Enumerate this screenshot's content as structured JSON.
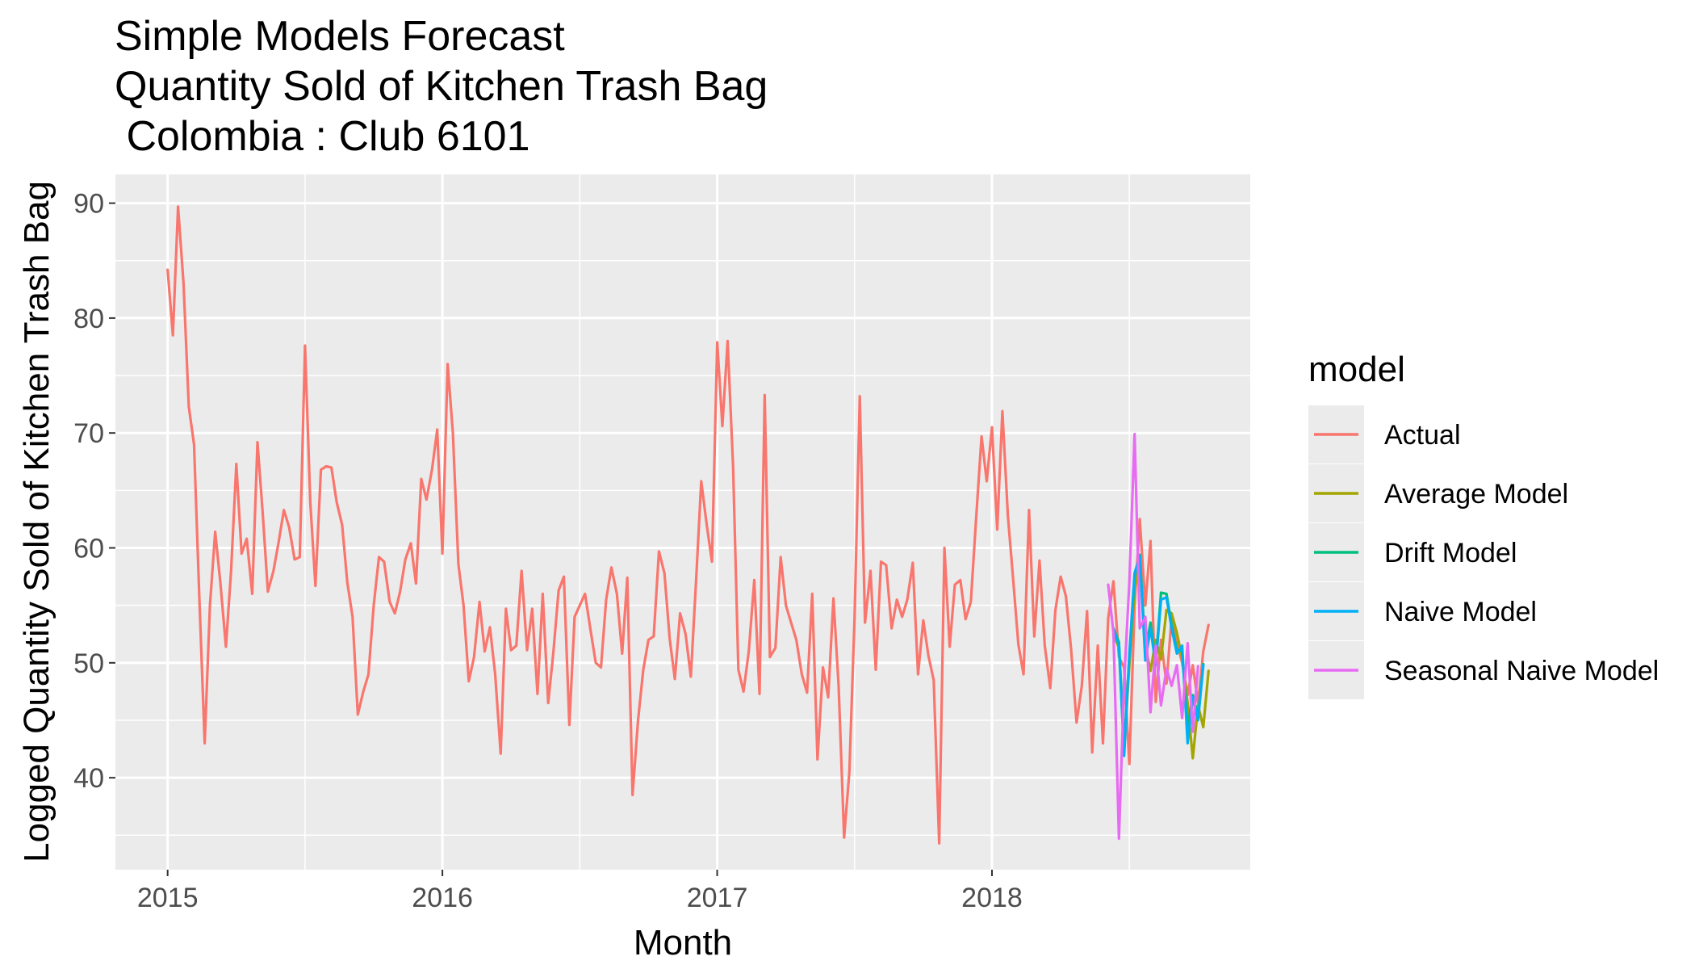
{
  "chart_data": {
    "type": "line",
    "title_lines": [
      "Simple Models Forecast",
      "Quantity Sold of Kitchen Trash Bag",
      " Colombia : Club 6101"
    ],
    "xlabel": "Month",
    "ylabel": "Logged Quantity Sold of Kitchen Trash Bag",
    "xlim": [
      2014.81,
      2018.94
    ],
    "ylim": [
      32,
      92.5
    ],
    "x_ticks": [
      2015,
      2016,
      2017,
      2018
    ],
    "x_tick_labels": [
      "2015",
      "2016",
      "2017",
      "2018"
    ],
    "y_ticks": [
      40,
      50,
      60,
      70,
      80,
      90
    ],
    "y_tick_labels": [
      "40",
      "50",
      "60",
      "70",
      "80",
      "90"
    ],
    "grid": true,
    "legend": {
      "title": "model",
      "position": "right"
    },
    "colors": {
      "panel_background": "#ebebeb",
      "grid": "#ffffff"
    },
    "series": [
      {
        "name": "Actual",
        "color": "#F8766D",
        "points": [
          [
            2015.0,
            84.2
          ],
          [
            2015.019,
            78.5
          ],
          [
            2015.038,
            89.7
          ],
          [
            2015.058,
            83.0
          ],
          [
            2015.077,
            72.3
          ],
          [
            2015.096,
            69.0
          ],
          [
            2015.115,
            56.0
          ],
          [
            2015.135,
            43.0
          ],
          [
            2015.154,
            55.0
          ],
          [
            2015.173,
            61.4
          ],
          [
            2015.192,
            57.0
          ],
          [
            2015.212,
            51.4
          ],
          [
            2015.231,
            58.0
          ],
          [
            2015.25,
            67.3
          ],
          [
            2015.269,
            59.5
          ],
          [
            2015.288,
            60.8
          ],
          [
            2015.308,
            56.0
          ],
          [
            2015.327,
            69.2
          ],
          [
            2015.346,
            63.0
          ],
          [
            2015.365,
            56.2
          ],
          [
            2015.385,
            58.0
          ],
          [
            2015.404,
            60.5
          ],
          [
            2015.423,
            63.3
          ],
          [
            2015.442,
            61.8
          ],
          [
            2015.462,
            59.0
          ],
          [
            2015.481,
            59.2
          ],
          [
            2015.5,
            77.6
          ],
          [
            2015.519,
            64.0
          ],
          [
            2015.538,
            56.7
          ],
          [
            2015.558,
            66.8
          ],
          [
            2015.577,
            67.1
          ],
          [
            2015.596,
            67.0
          ],
          [
            2015.615,
            64.0
          ],
          [
            2015.635,
            62.0
          ],
          [
            2015.654,
            57.0
          ],
          [
            2015.673,
            54.0
          ],
          [
            2015.692,
            45.5
          ],
          [
            2015.712,
            47.5
          ],
          [
            2015.731,
            49.0
          ],
          [
            2015.75,
            55.0
          ],
          [
            2015.769,
            59.2
          ],
          [
            2015.788,
            58.8
          ],
          [
            2015.808,
            55.3
          ],
          [
            2015.827,
            54.3
          ],
          [
            2015.846,
            56.2
          ],
          [
            2015.865,
            59.0
          ],
          [
            2015.885,
            60.4
          ],
          [
            2015.904,
            56.9
          ],
          [
            2015.923,
            66.0
          ],
          [
            2015.942,
            64.2
          ],
          [
            2015.962,
            66.8
          ],
          [
            2015.981,
            70.3
          ],
          [
            2016.0,
            59.5
          ],
          [
            2016.019,
            76.0
          ],
          [
            2016.038,
            70.0
          ],
          [
            2016.058,
            58.6
          ],
          [
            2016.077,
            55.0
          ],
          [
            2016.096,
            48.4
          ],
          [
            2016.115,
            50.5
          ],
          [
            2016.135,
            55.3
          ],
          [
            2016.154,
            51.0
          ],
          [
            2016.173,
            53.1
          ],
          [
            2016.192,
            49.0
          ],
          [
            2016.212,
            42.1
          ],
          [
            2016.231,
            54.7
          ],
          [
            2016.25,
            51.1
          ],
          [
            2016.269,
            51.5
          ],
          [
            2016.288,
            58.0
          ],
          [
            2016.308,
            51.1
          ],
          [
            2016.327,
            54.7
          ],
          [
            2016.346,
            47.3
          ],
          [
            2016.365,
            56.0
          ],
          [
            2016.385,
            46.5
          ],
          [
            2016.404,
            51.0
          ],
          [
            2016.423,
            56.3
          ],
          [
            2016.442,
            57.5
          ],
          [
            2016.462,
            44.6
          ],
          [
            2016.481,
            54.0
          ],
          [
            2016.5,
            55.0
          ],
          [
            2016.519,
            56.0
          ],
          [
            2016.538,
            53.0
          ],
          [
            2016.558,
            50.0
          ],
          [
            2016.577,
            49.6
          ],
          [
            2016.596,
            55.5
          ],
          [
            2016.615,
            58.3
          ],
          [
            2016.635,
            56.0
          ],
          [
            2016.654,
            50.8
          ],
          [
            2016.673,
            57.4
          ],
          [
            2016.692,
            38.5
          ],
          [
            2016.712,
            45.0
          ],
          [
            2016.731,
            49.4
          ],
          [
            2016.75,
            52.0
          ],
          [
            2016.769,
            52.3
          ],
          [
            2016.788,
            59.7
          ],
          [
            2016.808,
            57.8
          ],
          [
            2016.827,
            52.1
          ],
          [
            2016.846,
            48.6
          ],
          [
            2016.865,
            54.3
          ],
          [
            2016.885,
            52.5
          ],
          [
            2016.904,
            48.8
          ],
          [
            2016.923,
            57.0
          ],
          [
            2016.942,
            65.8
          ],
          [
            2016.962,
            62.0
          ],
          [
            2016.981,
            58.8
          ],
          [
            2017.0,
            77.9
          ],
          [
            2017.019,
            70.6
          ],
          [
            2017.038,
            78.0
          ],
          [
            2017.058,
            67.0
          ],
          [
            2017.077,
            49.4
          ],
          [
            2017.096,
            47.5
          ],
          [
            2017.115,
            51.0
          ],
          [
            2017.135,
            57.2
          ],
          [
            2017.154,
            47.3
          ],
          [
            2017.173,
            73.3
          ],
          [
            2017.192,
            50.5
          ],
          [
            2017.212,
            51.3
          ],
          [
            2017.231,
            59.2
          ],
          [
            2017.25,
            55.0
          ],
          [
            2017.269,
            53.5
          ],
          [
            2017.288,
            52.0
          ],
          [
            2017.308,
            49.0
          ],
          [
            2017.327,
            47.4
          ],
          [
            2017.346,
            56.0
          ],
          [
            2017.365,
            41.6
          ],
          [
            2017.385,
            49.6
          ],
          [
            2017.404,
            47.0
          ],
          [
            2017.423,
            55.6
          ],
          [
            2017.442,
            48.0
          ],
          [
            2017.462,
            34.8
          ],
          [
            2017.481,
            40.5
          ],
          [
            2017.5,
            54.0
          ],
          [
            2017.519,
            73.2
          ],
          [
            2017.538,
            53.5
          ],
          [
            2017.558,
            58.0
          ],
          [
            2017.577,
            49.4
          ],
          [
            2017.596,
            58.8
          ],
          [
            2017.615,
            58.5
          ],
          [
            2017.635,
            53.0
          ],
          [
            2017.654,
            55.5
          ],
          [
            2017.673,
            54.0
          ],
          [
            2017.692,
            55.5
          ],
          [
            2017.712,
            58.7
          ],
          [
            2017.731,
            49.0
          ],
          [
            2017.75,
            53.7
          ],
          [
            2017.769,
            50.6
          ],
          [
            2017.788,
            48.5
          ],
          [
            2017.808,
            34.3
          ],
          [
            2017.827,
            60.0
          ],
          [
            2017.846,
            51.4
          ],
          [
            2017.865,
            56.8
          ],
          [
            2017.885,
            57.2
          ],
          [
            2017.904,
            53.8
          ],
          [
            2017.923,
            55.3
          ],
          [
            2017.942,
            62.4
          ],
          [
            2017.962,
            69.7
          ],
          [
            2017.981,
            65.8
          ],
          [
            2018.0,
            70.5
          ],
          [
            2018.019,
            61.6
          ],
          [
            2018.038,
            71.9
          ],
          [
            2018.058,
            62.8
          ],
          [
            2018.077,
            57.3
          ],
          [
            2018.096,
            51.6
          ],
          [
            2018.115,
            49.0
          ],
          [
            2018.135,
            63.3
          ],
          [
            2018.154,
            52.3
          ],
          [
            2018.173,
            58.9
          ],
          [
            2018.192,
            51.5
          ],
          [
            2018.212,
            47.8
          ],
          [
            2018.231,
            54.6
          ],
          [
            2018.25,
            57.5
          ],
          [
            2018.269,
            55.8
          ],
          [
            2018.288,
            51.2
          ],
          [
            2018.308,
            44.8
          ],
          [
            2018.327,
            48.0
          ],
          [
            2018.346,
            54.5
          ],
          [
            2018.365,
            42.2
          ],
          [
            2018.385,
            51.5
          ],
          [
            2018.404,
            43.0
          ],
          [
            2018.423,
            53.9
          ],
          [
            2018.442,
            57.1
          ],
          [
            2018.462,
            50.5
          ],
          [
            2018.481,
            49.6
          ],
          [
            2018.5,
            41.2
          ],
          [
            2018.519,
            55.0
          ],
          [
            2018.538,
            62.5
          ],
          [
            2018.558,
            55.0
          ],
          [
            2018.577,
            60.6
          ],
          [
            2018.596,
            46.6
          ],
          [
            2018.615,
            52.0
          ],
          [
            2018.635,
            48.2
          ],
          [
            2018.654,
            54.0
          ],
          [
            2018.673,
            51.8
          ],
          [
            2018.692,
            50.0
          ],
          [
            2018.712,
            47.2
          ],
          [
            2018.731,
            49.8
          ],
          [
            2018.75,
            46.5
          ],
          [
            2018.769,
            51.0
          ],
          [
            2018.788,
            53.3
          ]
        ]
      },
      {
        "name": "Average Model",
        "color": "#A3A500",
        "points": [
          [
            2018.442,
            52.5
          ],
          [
            2018.462,
            51.3
          ],
          [
            2018.481,
            42.5
          ],
          [
            2018.5,
            49.8
          ],
          [
            2018.519,
            56.5
          ],
          [
            2018.538,
            58.7
          ],
          [
            2018.558,
            51.5
          ],
          [
            2018.577,
            49.3
          ],
          [
            2018.596,
            52.0
          ],
          [
            2018.615,
            50.3
          ],
          [
            2018.635,
            54.6
          ],
          [
            2018.654,
            54.3
          ],
          [
            2018.673,
            52.6
          ],
          [
            2018.692,
            50.4
          ],
          [
            2018.712,
            46.5
          ],
          [
            2018.731,
            41.7
          ],
          [
            2018.75,
            46.3
          ],
          [
            2018.769,
            44.4
          ],
          [
            2018.788,
            49.3
          ]
        ]
      },
      {
        "name": "Drift Model",
        "color": "#00BF7D",
        "points": [
          [
            2018.442,
            53.0
          ],
          [
            2018.462,
            51.8
          ],
          [
            2018.481,
            42.8
          ],
          [
            2018.5,
            50.5
          ],
          [
            2018.519,
            57.5
          ],
          [
            2018.538,
            59.4
          ],
          [
            2018.558,
            51.0
          ],
          [
            2018.577,
            53.5
          ],
          [
            2018.596,
            50.0
          ],
          [
            2018.615,
            56.1
          ],
          [
            2018.635,
            56.0
          ],
          [
            2018.654,
            53.3
          ],
          [
            2018.673,
            51.1
          ],
          [
            2018.692,
            51.0
          ],
          [
            2018.712,
            44.3
          ],
          [
            2018.731,
            47.2
          ],
          [
            2018.75,
            45.3
          ],
          [
            2018.769,
            49.9
          ]
        ]
      },
      {
        "name": "Naive Model",
        "color": "#00B0F6",
        "points": [
          [
            2018.442,
            52.9
          ],
          [
            2018.462,
            51.5
          ],
          [
            2018.481,
            41.9
          ],
          [
            2018.5,
            50.8
          ],
          [
            2018.519,
            57.8
          ],
          [
            2018.538,
            59.3
          ],
          [
            2018.558,
            50.2
          ],
          [
            2018.577,
            53.0
          ],
          [
            2018.596,
            49.8
          ],
          [
            2018.615,
            55.5
          ],
          [
            2018.635,
            55.7
          ],
          [
            2018.654,
            53.0
          ],
          [
            2018.673,
            50.8
          ],
          [
            2018.692,
            51.5
          ],
          [
            2018.712,
            43.0
          ],
          [
            2018.731,
            47.0
          ],
          [
            2018.75,
            45.0
          ],
          [
            2018.769,
            49.8
          ]
        ]
      },
      {
        "name": "Seasonal Naive Model",
        "color": "#E76BF3",
        "points": [
          [
            2018.423,
            56.8
          ],
          [
            2018.442,
            52.6
          ],
          [
            2018.462,
            34.7
          ],
          [
            2018.481,
            48.3
          ],
          [
            2018.5,
            57.0
          ],
          [
            2018.519,
            69.9
          ],
          [
            2018.538,
            53.0
          ],
          [
            2018.558,
            54.0
          ],
          [
            2018.577,
            45.7
          ],
          [
            2018.596,
            51.5
          ],
          [
            2018.615,
            46.3
          ],
          [
            2018.635,
            49.5
          ],
          [
            2018.654,
            48.0
          ],
          [
            2018.673,
            49.8
          ],
          [
            2018.692,
            45.2
          ],
          [
            2018.712,
            51.7
          ],
          [
            2018.731,
            44.0
          ],
          [
            2018.75,
            49.7
          ]
        ]
      }
    ]
  }
}
